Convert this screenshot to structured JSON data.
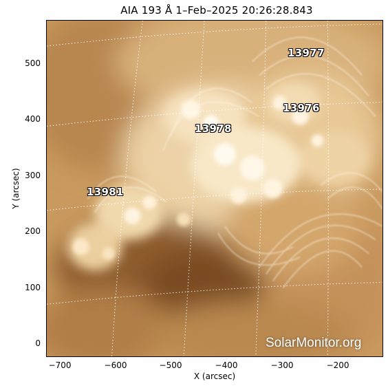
{
  "header": {
    "title": "AIA 193 Å   1–Feb–2025 20:26:28.843"
  },
  "axes": {
    "xlabel": "X (arcsec)",
    "ylabel": "Y (arcsec)",
    "xticks": [
      "−700",
      "−600",
      "−500",
      "−400",
      "−300",
      "−200"
    ],
    "yticks": [
      "500",
      "400",
      "300",
      "200",
      "100",
      "0"
    ]
  },
  "active_regions": [
    {
      "label": "13977"
    },
    {
      "label": "13976"
    },
    {
      "label": "13978"
    },
    {
      "label": "13981"
    }
  ],
  "watermark": "SolarMonitor.org",
  "colors": {
    "bright": "#fdf3de",
    "mid": "#d7aa70",
    "dark": "#8a5a2c",
    "darkest": "#6e4520",
    "grid": "#ffffff"
  }
}
